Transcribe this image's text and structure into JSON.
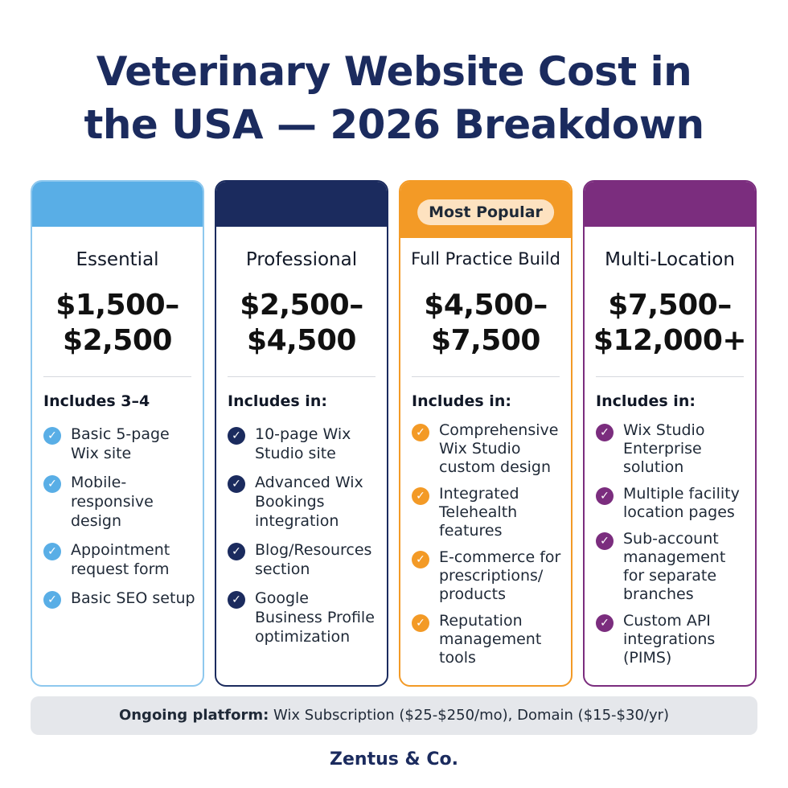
{
  "title": {
    "line1": "Veterinary Website Cost in",
    "line2": "the USA — 2026 Breakdown"
  },
  "colors": {
    "title": "#1b2b5e",
    "essential": "#59aee6",
    "professional": "#1b2b5e",
    "full_practice": "#f39a26",
    "multi_location": "#7b2d7e",
    "footer_bg": "#e5e7eb"
  },
  "plans": [
    {
      "name": "Essential",
      "price_line1": "$1,500–",
      "price_line2": "$2,500",
      "includes_label": "Includes 3–4",
      "icon": "check-circle-icon",
      "features": [
        "Basic 5-page Wix site",
        "Mobile-responsive design",
        "Appointment request form",
        "Basic SEO setup"
      ]
    },
    {
      "name": "Professional",
      "price_line1": "$2,500–",
      "price_line2": "$4,500",
      "includes_label": "Includes in:",
      "icon": "check-circle-icon",
      "features": [
        "10-page Wix Studio site",
        "Advanced Wix Bookings integration",
        "Blog/Resources section",
        "Google Business Profile optimization"
      ]
    },
    {
      "name": "Full Practice Build",
      "badge": "Most Popular",
      "price_line1": "$4,500–",
      "price_line2": "$7,500",
      "includes_label": "Includes in:",
      "icon": "check-circle-icon",
      "features": [
        "Comprehensive Wix Studio custom design",
        "Integrated Telehealth features",
        "E-commerce for prescriptions/ products",
        "Reputation management tools"
      ]
    },
    {
      "name": "Multi-Location",
      "price_line1": "$7,500–",
      "price_line2": "$12,000+",
      "includes_label": "Includes in:",
      "icon": "check-circle-icon",
      "features": [
        "Wix Studio Enterprise solution",
        "Multiple facility location pages",
        "Sub-account management for separate branches",
        "Custom API integrations (PIMS)"
      ]
    }
  ],
  "footer": {
    "label": "Ongoing platform:",
    "text": " Wix Subscription ($25-$250/mo), Domain ($15-$30/yr)"
  },
  "brand": "Zentus & Co."
}
